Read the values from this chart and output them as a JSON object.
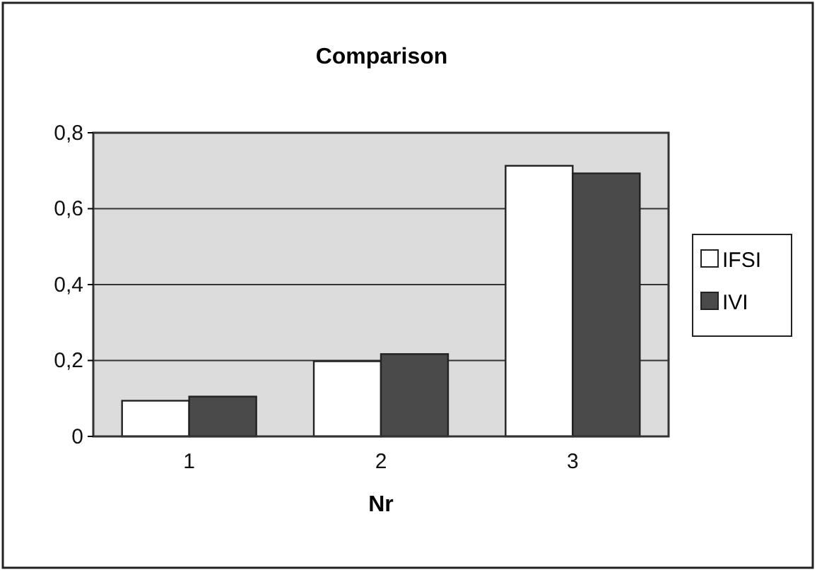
{
  "chart_data": {
    "type": "bar",
    "title": "Comparison",
    "xlabel": "Nr",
    "categories": [
      "1",
      "2",
      "3"
    ],
    "series": [
      {
        "name": "IFSI",
        "color": "#ffffff",
        "values": [
          0.094,
          0.198,
          0.713
        ]
      },
      {
        "name": "IVI",
        "color": "#4a4a4a",
        "values": [
          0.105,
          0.217,
          0.693
        ]
      }
    ],
    "ylim": [
      0,
      0.8
    ],
    "yticks": [
      0,
      {
        "value": 0.2,
        "label": "0,2"
      },
      {
        "value": 0.4,
        "label": "0,4"
      },
      {
        "value": 0.6,
        "label": "0,6"
      },
      {
        "value": 0.8,
        "label": "0,8"
      }
    ],
    "grid": "y",
    "legend": "right"
  }
}
